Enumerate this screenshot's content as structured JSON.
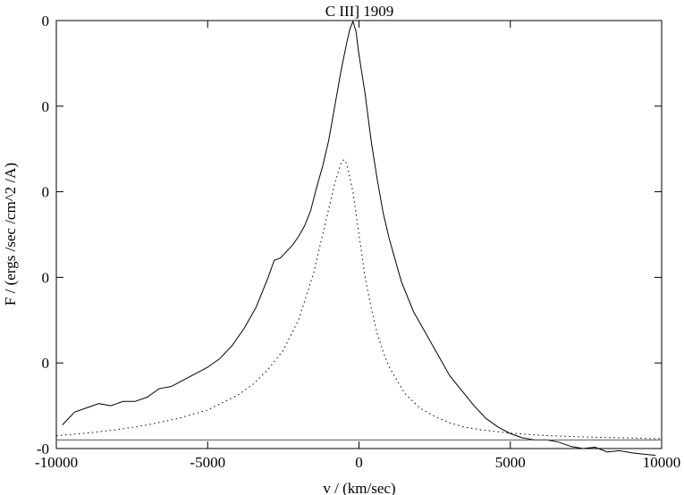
{
  "chart_data": {
    "type": "line",
    "title": "C III] 1909",
    "xlabel": "v / (km/sec)",
    "ylabel": "F / (ergs /sec /cm^2 /A)",
    "xlim": [
      -10000,
      10000
    ],
    "ylim": [
      0,
      100
    ],
    "x_ticks": [
      -10000,
      -5000,
      0,
      5000,
      10000
    ],
    "x_tick_labels": [
      "-10000",
      "-5000",
      "0",
      "5000",
      "10000"
    ],
    "y_ticks": [
      0,
      20,
      40,
      60,
      80,
      100
    ],
    "y_tick_labels": [
      "-0",
      "0",
      "0",
      "0",
      "0",
      "0"
    ],
    "grid": false,
    "legend": "none",
    "series": [
      {
        "style": "solid",
        "x": [
          -9800,
          -9400,
          -9000,
          -8600,
          -8200,
          -7800,
          -7400,
          -7000,
          -6600,
          -6200,
          -5800,
          -5400,
          -5000,
          -4600,
          -4200,
          -3800,
          -3400,
          -3000,
          -2800,
          -2600,
          -2400,
          -2200,
          -2000,
          -1800,
          -1600,
          -1400,
          -1200,
          -1000,
          -800,
          -600,
          -400,
          -300,
          -200,
          -100,
          0,
          200,
          400,
          600,
          800,
          1000,
          1400,
          1800,
          2200,
          2600,
          3000,
          3400,
          3800,
          4200,
          4600,
          5000,
          5400,
          5800,
          6200,
          6600,
          7000,
          7400,
          7800,
          8200,
          8600,
          9000,
          9400,
          9800
        ],
        "y": [
          5.5,
          8.5,
          9.5,
          10.5,
          10,
          11,
          11,
          12,
          14,
          14.5,
          16,
          17.5,
          19,
          21,
          24,
          28,
          33,
          40,
          44,
          44.5,
          46,
          47.5,
          49.5,
          52,
          55.5,
          61,
          66,
          72,
          80,
          88,
          95,
          98,
          99.8,
          97.5,
          92,
          83,
          72,
          63,
          55,
          49,
          39,
          32,
          27,
          22,
          17,
          13.5,
          10,
          7,
          5,
          3.5,
          2.5,
          2,
          2,
          1.5,
          0.5,
          0,
          0.3,
          -0.8,
          -0.5,
          -1,
          -1.3,
          -1.6
        ]
      },
      {
        "style": "dotted",
        "x": [
          -10000,
          -9000,
          -8000,
          -7000,
          -6000,
          -5000,
          -4000,
          -3500,
          -3000,
          -2500,
          -2000,
          -1500,
          -1200,
          -1000,
          -800,
          -600,
          -500,
          -400,
          -200,
          0,
          200,
          400,
          600,
          800,
          1000,
          1500,
          2000,
          2500,
          3000,
          3500,
          4000,
          5000,
          6000,
          7000,
          8000,
          9000,
          10000
        ],
        "y": [
          3,
          3.6,
          4.4,
          5.5,
          7,
          9,
          12.5,
          15,
          18.5,
          23,
          30,
          41,
          50,
          56,
          62,
          66.5,
          67.5,
          66.5,
          60,
          50,
          40,
          33,
          27,
          22.5,
          19,
          13,
          9.5,
          7.5,
          6,
          5,
          4.4,
          3.6,
          3.1,
          2.8,
          2.6,
          2.45,
          2.3
        ]
      },
      {
        "style": "solid-flat",
        "x": [
          -10000,
          10000
        ],
        "y": [
          2,
          2
        ]
      }
    ]
  }
}
